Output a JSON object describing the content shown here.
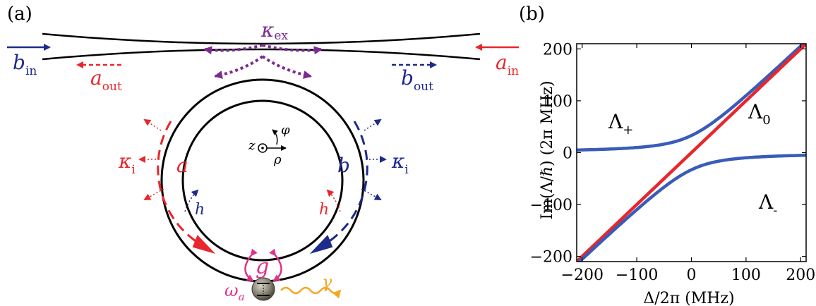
{
  "panels": {
    "a": {
      "label": "(a)",
      "labels": {
        "kappa_ex": "κ",
        "kappa_ex_sub": "ex",
        "b_in": "b",
        "b_in_sub": "in",
        "a_out": "a",
        "a_out_sub": "out",
        "b_out": "b",
        "b_out_sub": "out",
        "a_in": "a",
        "a_in_sub": "in",
        "kappa_i_left": "κ",
        "kappa_i_left_sub": "i",
        "kappa_i_right": "κ",
        "kappa_i_right_sub": "i",
        "mode_a": "a",
        "mode_b": "b",
        "h_left": "h",
        "h_right": "h",
        "g": "g",
        "omega": "ω",
        "omega_sub": "a",
        "gamma": "γ",
        "z": "z",
        "rho": "ρ",
        "phi": "φ"
      },
      "colors": {
        "red": "#e8262b",
        "blue": "#1e2a8c",
        "purple": "#7b2a90",
        "magenta": "#e0318a",
        "orange": "#f5a623",
        "black": "#000000"
      }
    },
    "b": {
      "label": "(b)",
      "xlabel": "Δ/2π (MHz)",
      "ylabel": "Im(Λ/ℏ) (2π MHz)",
      "curve_labels": {
        "plus": "Λ",
        "plus_sub": "+",
        "zero": "Λ",
        "zero_sub": "0",
        "minus": "Λ",
        "minus_sub": "-"
      }
    }
  },
  "chart_data": {
    "type": "line",
    "xlim": [
      -210,
      210
    ],
    "ylim": [
      -210,
      210
    ],
    "xticks": [
      -200,
      -100,
      0,
      100,
      200
    ],
    "yticks": [
      -200,
      -100,
      0,
      100,
      200
    ],
    "xtick_labels": [
      "−200",
      "−100",
      "0",
      "100",
      "200"
    ],
    "ytick_labels": [
      "−200",
      "−100",
      "0",
      "100",
      "200"
    ],
    "grid": false,
    "coupling_g": 33,
    "series": [
      {
        "key": "plus",
        "color": "#3a5cb8",
        "formula": "delta/2 + sqrt((delta/2)^2 + g^2)"
      },
      {
        "key": "zero",
        "color": "#e8262b",
        "formula": "delta"
      },
      {
        "key": "minus",
        "color": "#3a5cb8",
        "formula": "delta/2 - sqrt((delta/2)^2 + g^2)"
      }
    ]
  }
}
